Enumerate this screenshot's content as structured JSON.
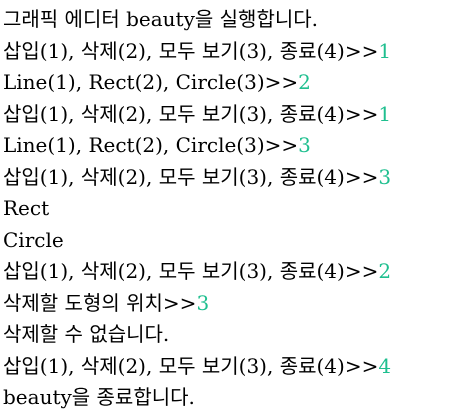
{
  "console": {
    "lines": [
      {
        "prompt": "그래픽 에디터 beauty을 실행합니다.",
        "input": ""
      },
      {
        "prompt": "삽입(1), 삭제(2), 모두 보기(3), 종료(4)>>",
        "input": "1"
      },
      {
        "prompt": "Line(1), Rect(2), Circle(3)>>",
        "input": "2"
      },
      {
        "prompt": "삽입(1), 삭제(2), 모두 보기(3), 종료(4)>>",
        "input": "1"
      },
      {
        "prompt": "Line(1), Rect(2), Circle(3)>>",
        "input": "3"
      },
      {
        "prompt": "삽입(1), 삭제(2), 모두 보기(3), 종료(4)>>",
        "input": "3"
      },
      {
        "prompt": "Rect",
        "input": ""
      },
      {
        "prompt": "Circle",
        "input": ""
      },
      {
        "prompt": "삽입(1), 삭제(2), 모두 보기(3), 종료(4)>>",
        "input": "2"
      },
      {
        "prompt": "삭제할 도형의 위치>>",
        "input": "3"
      },
      {
        "prompt": "삭제할 수 없습니다.",
        "input": ""
      },
      {
        "prompt": "삽입(1), 삭제(2), 모두 보기(3), 종료(4)>>",
        "input": "4"
      },
      {
        "prompt": "beauty을 종료합니다.",
        "input": ""
      }
    ]
  },
  "colors": {
    "input_text": "#1fbf8f",
    "output_text": "#000000",
    "background": "#ffffff"
  }
}
